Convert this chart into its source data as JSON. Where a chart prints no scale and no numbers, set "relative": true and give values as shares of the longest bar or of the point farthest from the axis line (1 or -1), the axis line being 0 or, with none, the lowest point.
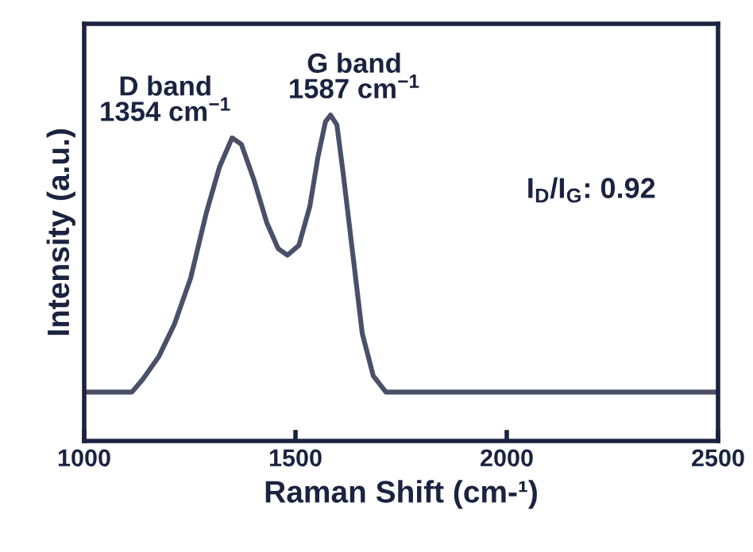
{
  "chart_data": {
    "type": "line",
    "relative": true,
    "xlabel": "Raman Shift (cm-¹)",
    "ylabel": "Intensity (a.u.)",
    "xlim": [
      1000,
      2500
    ],
    "xticks": [
      1000,
      1500,
      2000,
      2500
    ],
    "grid": false,
    "legend": false,
    "marker": "none",
    "line_style": "solid",
    "x": [
      1000,
      1102,
      1113,
      1139,
      1177,
      1214,
      1252,
      1289,
      1320,
      1350,
      1372,
      1402,
      1432,
      1459,
      1481,
      1508,
      1534,
      1553,
      1571,
      1583,
      1598,
      1613,
      1635,
      1658,
      1684,
      1714,
      2500
    ],
    "series": [
      {
        "color": "#4a5068",
        "values": [
          0.15,
          0.15,
          0.15,
          0.19,
          0.26,
          0.36,
          0.5,
          0.7,
          0.84,
          0.93,
          0.91,
          0.8,
          0.67,
          0.59,
          0.57,
          0.6,
          0.72,
          0.87,
          0.98,
          1,
          0.97,
          0.82,
          0.58,
          0.33,
          0.2,
          0.15,
          0.15
        ]
      }
    ],
    "annotations": [
      {
        "text": "D band\n1354 cm$^{−1}$",
        "x": 1354,
        "y": 0.93
      },
      {
        "text": "G band\n1587 cm$^{−1}$",
        "x": 1587,
        "y": 1
      },
      "I$_{D}$/I$_{G}$: 0.92"
    ]
  }
}
